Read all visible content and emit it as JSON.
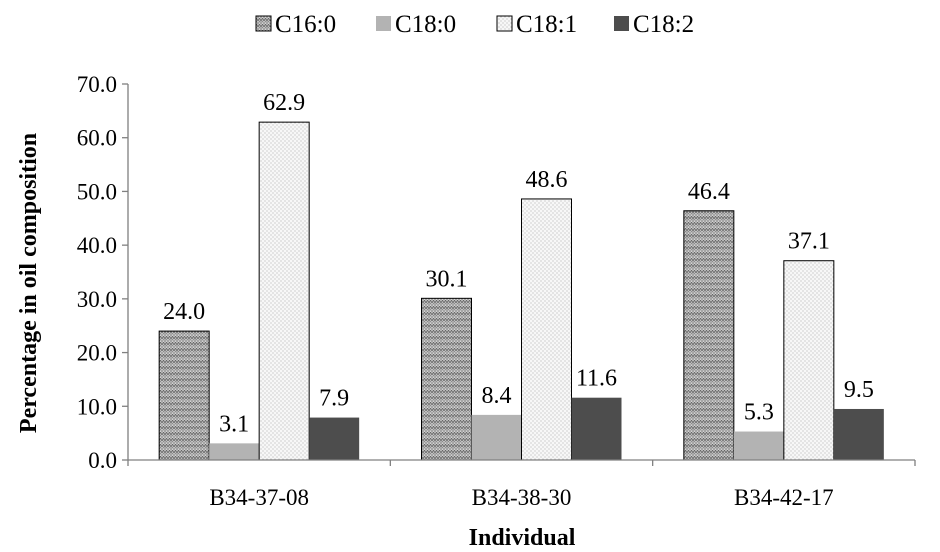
{
  "chart_data": {
    "type": "bar",
    "categories": [
      "B34-37-08",
      "B34-38-30",
      "B34-42-17"
    ],
    "series": [
      {
        "name": "C16:0",
        "values": [
          24.0,
          30.1,
          46.4
        ],
        "labels": [
          "24.0",
          "30.1",
          "46.4"
        ],
        "pattern": "zigzag",
        "color": "#cfcfcf"
      },
      {
        "name": "C18:0",
        "values": [
          3.1,
          8.4,
          5.3
        ],
        "labels": [
          "3.1",
          "8.4",
          "5.3"
        ],
        "pattern": "solid",
        "color": "#b3b3b3"
      },
      {
        "name": "C18:1",
        "values": [
          62.9,
          48.6,
          37.1
        ],
        "labels": [
          "62.9",
          "48.6",
          "37.1"
        ],
        "pattern": "dots",
        "color": "#f4f4f4"
      },
      {
        "name": "C18:2",
        "values": [
          7.9,
          11.6,
          9.5
        ],
        "labels": [
          "7.9",
          "11.6",
          "9.5"
        ],
        "pattern": "solid",
        "color": "#4d4d4d"
      }
    ],
    "xlabel": "Individual",
    "ylabel": "Percentage in oil composition",
    "ylim": [
      0,
      70
    ],
    "yticks": [
      "0.0",
      "10.0",
      "20.0",
      "30.0",
      "40.0",
      "50.0",
      "60.0",
      "70.0"
    ],
    "grid": false,
    "legend_position": "top"
  }
}
